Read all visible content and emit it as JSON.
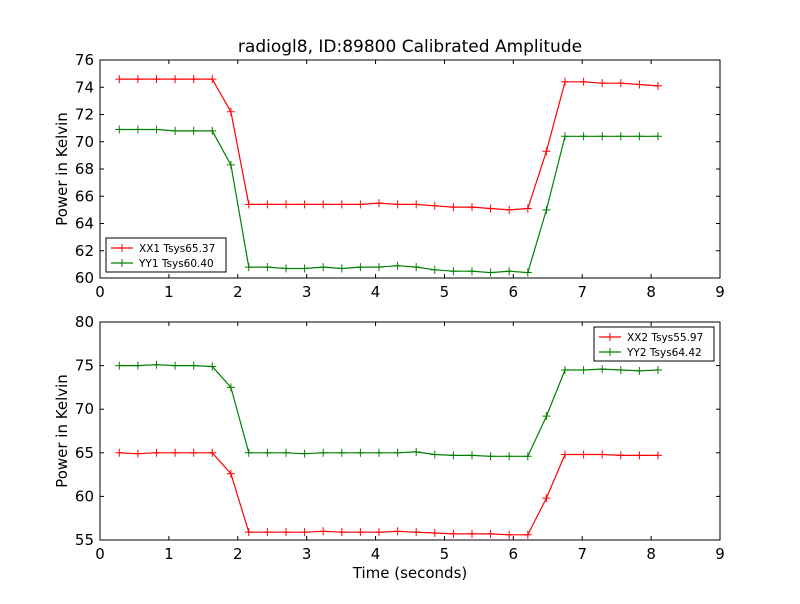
{
  "figure": {
    "title": "radiogl8, ID:89800 Calibrated Amplitude",
    "xlabel": "Time (seconds)"
  },
  "chart_data": [
    {
      "type": "line",
      "ylabel": "Power in Kelvin",
      "xlabel": "",
      "xlim": [
        0,
        9
      ],
      "ylim": [
        60,
        76
      ],
      "xticks": [
        0,
        1,
        2,
        3,
        4,
        5,
        6,
        7,
        8,
        9
      ],
      "yticks": [
        60,
        62,
        64,
        66,
        68,
        70,
        72,
        74,
        76
      ],
      "grid": false,
      "legend_position": "lower-left",
      "x": [
        0.28,
        0.55,
        0.82,
        1.09,
        1.36,
        1.63,
        1.9,
        2.16,
        2.43,
        2.7,
        2.97,
        3.24,
        3.51,
        3.78,
        4.05,
        4.32,
        4.59,
        4.86,
        5.13,
        5.4,
        5.67,
        5.94,
        6.21,
        6.48,
        6.75,
        7.02,
        7.29,
        7.56,
        7.83,
        8.1
      ],
      "series": [
        {
          "name": "XX1 Tsys65.37",
          "color": "#ff0000",
          "values": [
            74.6,
            74.6,
            74.6,
            74.6,
            74.6,
            74.6,
            72.2,
            65.4,
            65.4,
            65.4,
            65.4,
            65.4,
            65.4,
            65.4,
            65.5,
            65.4,
            65.4,
            65.3,
            65.2,
            65.2,
            65.1,
            65.0,
            65.1,
            69.3,
            74.4,
            74.4,
            74.3,
            74.3,
            74.2,
            74.1
          ]
        },
        {
          "name": "YY1 Tsys60.40",
          "color": "#008000",
          "values": [
            70.9,
            70.9,
            70.9,
            70.8,
            70.8,
            70.8,
            68.3,
            60.8,
            60.8,
            60.7,
            60.7,
            60.8,
            60.7,
            60.8,
            60.8,
            60.9,
            60.8,
            60.6,
            60.5,
            60.5,
            60.4,
            60.5,
            60.4,
            65.0,
            70.4,
            70.4,
            70.4,
            70.4,
            70.4,
            70.4
          ]
        }
      ]
    },
    {
      "type": "line",
      "ylabel": "Power in Kelvin",
      "xlabel": "Time (seconds)",
      "xlim": [
        0,
        9
      ],
      "ylim": [
        55,
        80
      ],
      "xticks": [
        0,
        1,
        2,
        3,
        4,
        5,
        6,
        7,
        8,
        9
      ],
      "yticks": [
        55,
        60,
        65,
        70,
        75,
        80
      ],
      "grid": false,
      "legend_position": "upper-right",
      "x": [
        0.28,
        0.55,
        0.82,
        1.09,
        1.36,
        1.63,
        1.9,
        2.16,
        2.43,
        2.7,
        2.97,
        3.24,
        3.51,
        3.78,
        4.05,
        4.32,
        4.59,
        4.86,
        5.13,
        5.4,
        5.67,
        5.94,
        6.21,
        6.48,
        6.75,
        7.02,
        7.29,
        7.56,
        7.83,
        8.1
      ],
      "series": [
        {
          "name": "XX2 Tsys55.97",
          "color": "#ff0000",
          "values": [
            65.0,
            64.9,
            65.0,
            65.0,
            65.0,
            65.0,
            62.6,
            55.9,
            55.9,
            55.9,
            55.9,
            56.0,
            55.9,
            55.9,
            55.9,
            56.0,
            55.9,
            55.8,
            55.7,
            55.7,
            55.7,
            55.6,
            55.6,
            59.8,
            64.8,
            64.8,
            64.8,
            64.7,
            64.7,
            64.7
          ]
        },
        {
          "name": "YY2 Tsys64.42",
          "color": "#008000",
          "values": [
            75.0,
            75.0,
            75.1,
            75.0,
            75.0,
            74.9,
            72.5,
            65.0,
            65.0,
            65.0,
            64.9,
            65.0,
            65.0,
            65.0,
            65.0,
            65.0,
            65.1,
            64.8,
            64.7,
            64.7,
            64.6,
            64.6,
            64.6,
            69.2,
            74.5,
            74.5,
            74.6,
            74.5,
            74.4,
            74.5
          ]
        }
      ]
    }
  ]
}
